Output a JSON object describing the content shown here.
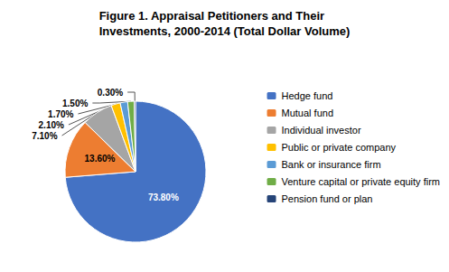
{
  "chart_data": {
    "type": "pie",
    "title": "Figure 1. Appraisal Petitioners and Their\nInvestments, 2000-2014 (Total Dollar Volume)",
    "categories": [
      "Hedge fund",
      "Mutual fund",
      "Individual investor",
      "Public or private company",
      "Bank or insurance firm",
      "Venture capital or private equity firm",
      "Pension fund or plan"
    ],
    "values": [
      73.8,
      13.6,
      7.1,
      2.1,
      1.7,
      1.5,
      0.3
    ],
    "value_labels": [
      "73.80%",
      "13.60%",
      "7.10%",
      "2.10%",
      "1.70%",
      "1.50%",
      "0.30%"
    ],
    "colors": [
      "#4472C4",
      "#ED7D31",
      "#A5A5A5",
      "#FFC000",
      "#5B9BD5",
      "#70AD47",
      "#264478"
    ],
    "legend": "right",
    "data_labels": true
  }
}
